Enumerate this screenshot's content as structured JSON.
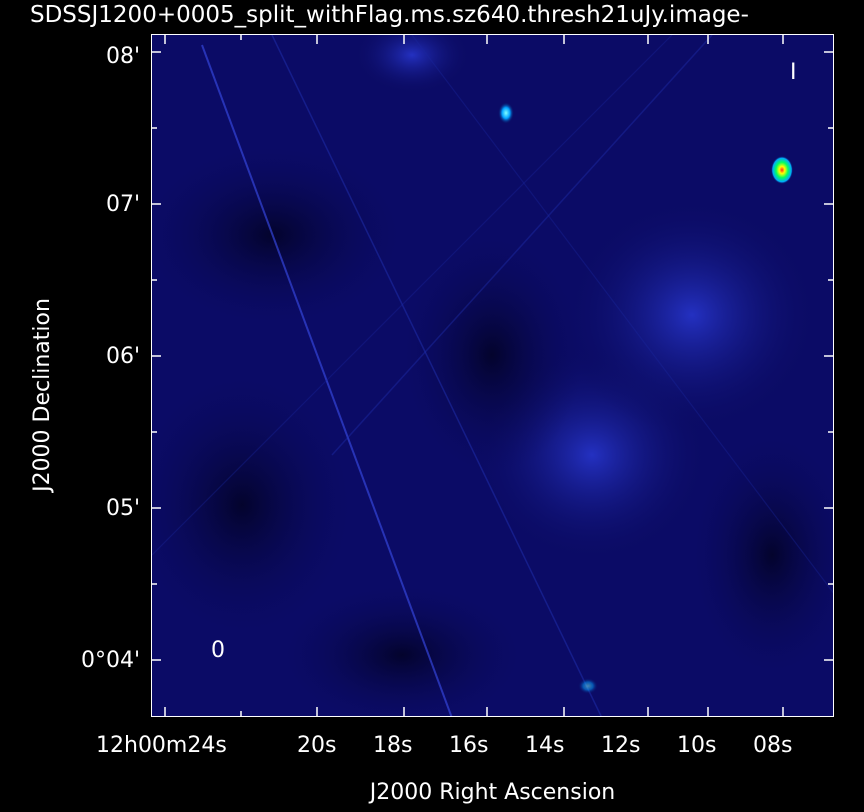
{
  "title": "SDSSJ1200+0005_split_withFlag.ms.sz640.thresh21uJy.image-",
  "axes": {
    "xlabel": "J2000 Right Ascension",
    "ylabel": "J2000 Declination",
    "yticks": [
      "08'",
      "07'",
      "06'",
      "05'",
      "0°04'"
    ],
    "xticks": [
      "12h00m24s",
      "20s",
      "18s",
      "16s",
      "14s",
      "12s",
      "10s",
      "08s"
    ]
  },
  "stokes_label": "I",
  "beam_label": "0",
  "colors": {
    "background": "#000000",
    "map_base": "#0a0a5a",
    "axis": "#ffffff"
  }
}
